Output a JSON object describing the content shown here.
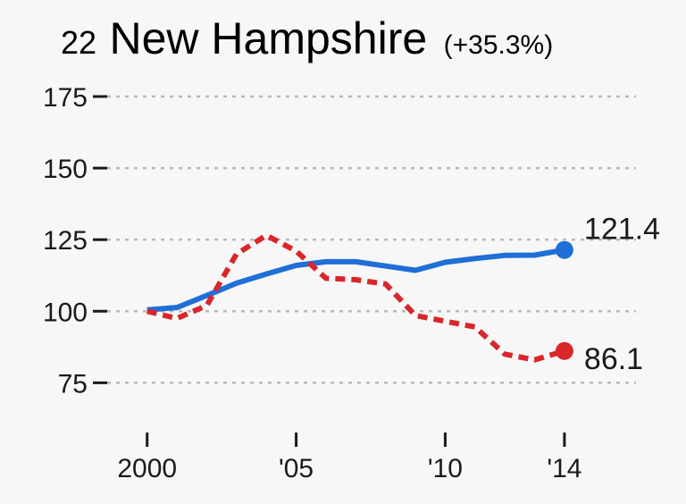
{
  "chart_data": {
    "type": "line",
    "title": {
      "rank": "22",
      "name": "New Hampshire",
      "change": "(+35.3%)"
    },
    "x": [
      2000,
      2001,
      2002,
      2003,
      2004,
      2005,
      2006,
      2007,
      2008,
      2009,
      2010,
      2011,
      2012,
      2013,
      2014
    ],
    "xticks": [
      {
        "value": 2000,
        "label": "2000"
      },
      {
        "value": 2005,
        "label": "'05"
      },
      {
        "value": 2010,
        "label": "'10"
      },
      {
        "value": 2014,
        "label": "'14"
      }
    ],
    "yticks": [
      75,
      100,
      125,
      150,
      175
    ],
    "ylim": [
      62,
      180
    ],
    "xlim": [
      1998.6,
      2016.4
    ],
    "grid": true,
    "series": [
      {
        "id": "blue",
        "color": "#1f6fd6",
        "style": "solid",
        "values": [
          100.5,
          101.3,
          105.5,
          109.8,
          113.0,
          116.0,
          117.3,
          117.3,
          115.8,
          114.3,
          117.1,
          118.4,
          119.5,
          119.6,
          121.4
        ],
        "end_label": "121.4"
      },
      {
        "id": "red",
        "color": "#d9262b",
        "style": "dashed",
        "values": [
          100.0,
          97.5,
          102.0,
          120.0,
          126.5,
          121.0,
          111.5,
          111.0,
          109.5,
          98.5,
          96.5,
          94.5,
          85.0,
          83.0,
          86.1
        ],
        "end_label": "86.1"
      }
    ]
  }
}
